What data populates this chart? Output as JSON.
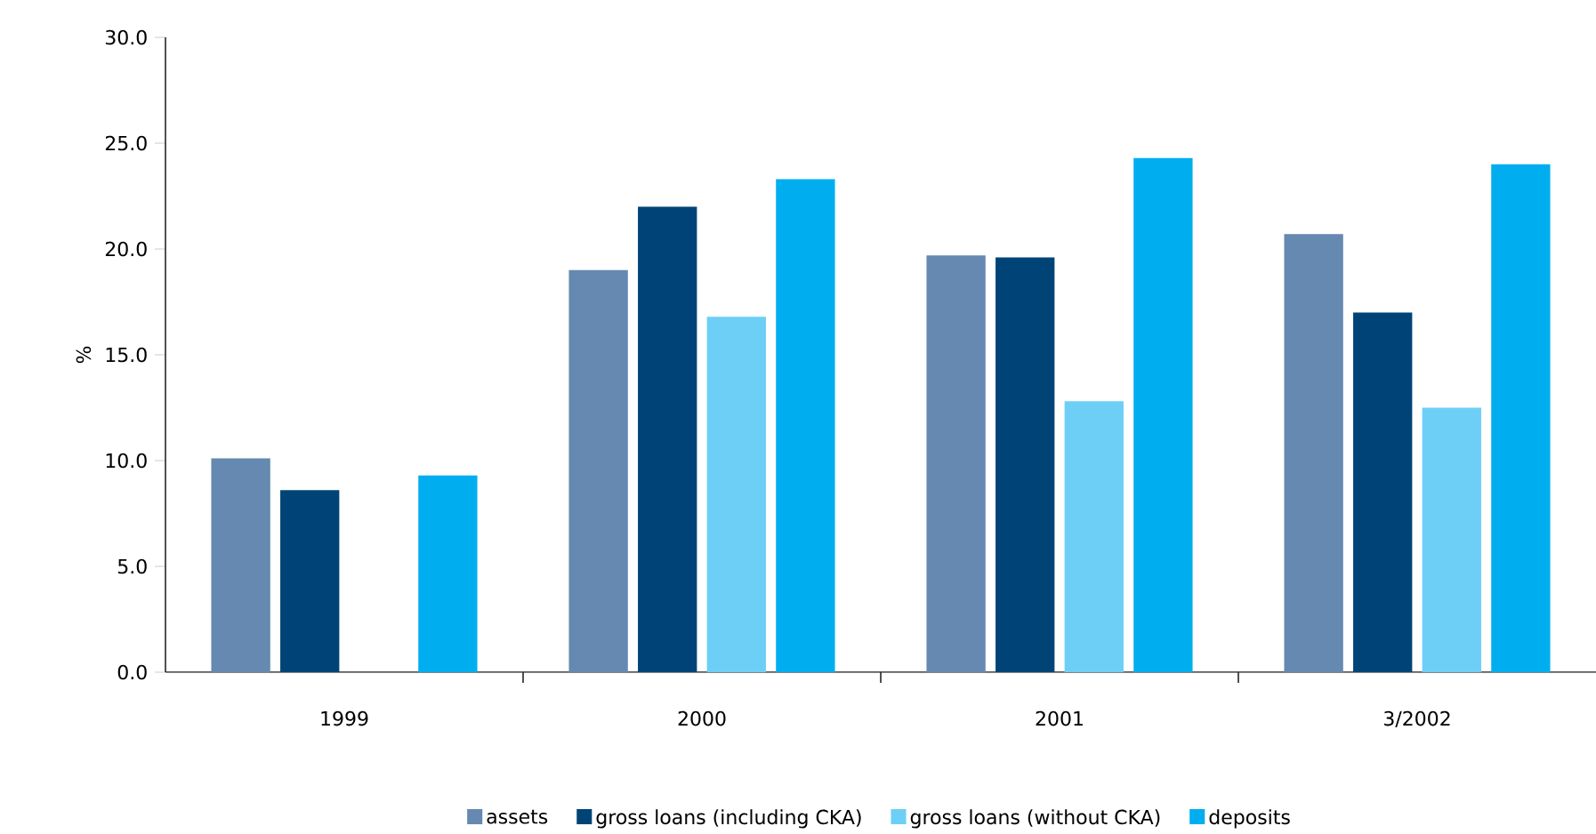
{
  "chart_data": {
    "type": "bar",
    "ylabel": "%",
    "categories": [
      "1999",
      "2000",
      "2001",
      "3/2002"
    ],
    "series": [
      {
        "name": "assets",
        "color": "#6589b0",
        "values": [
          10.1,
          19.0,
          19.7,
          20.7
        ]
      },
      {
        "name": "gross loans (including CKA)",
        "color": "#004477",
        "values": [
          8.6,
          22.0,
          19.6,
          17.0
        ]
      },
      {
        "name": "gross loans (without CKA)",
        "color": "#6dcff6",
        "values": [
          null,
          16.8,
          12.8,
          12.5
        ]
      },
      {
        "name": "deposits",
        "color": "#00aeef",
        "values": [
          9.3,
          23.3,
          24.3,
          24.0
        ]
      }
    ],
    "ylim": [
      0,
      30
    ],
    "yticks": [
      {
        "value": 0,
        "label": "0.0"
      },
      {
        "value": 5,
        "label": "5.0"
      },
      {
        "value": 10,
        "label": "10.0"
      },
      {
        "value": 15,
        "label": "15.0"
      },
      {
        "value": 20,
        "label": "20.0"
      },
      {
        "value": 25,
        "label": "25.0"
      },
      {
        "value": 30,
        "label": "30.0"
      }
    ],
    "grid": false,
    "legend": "bottom"
  }
}
